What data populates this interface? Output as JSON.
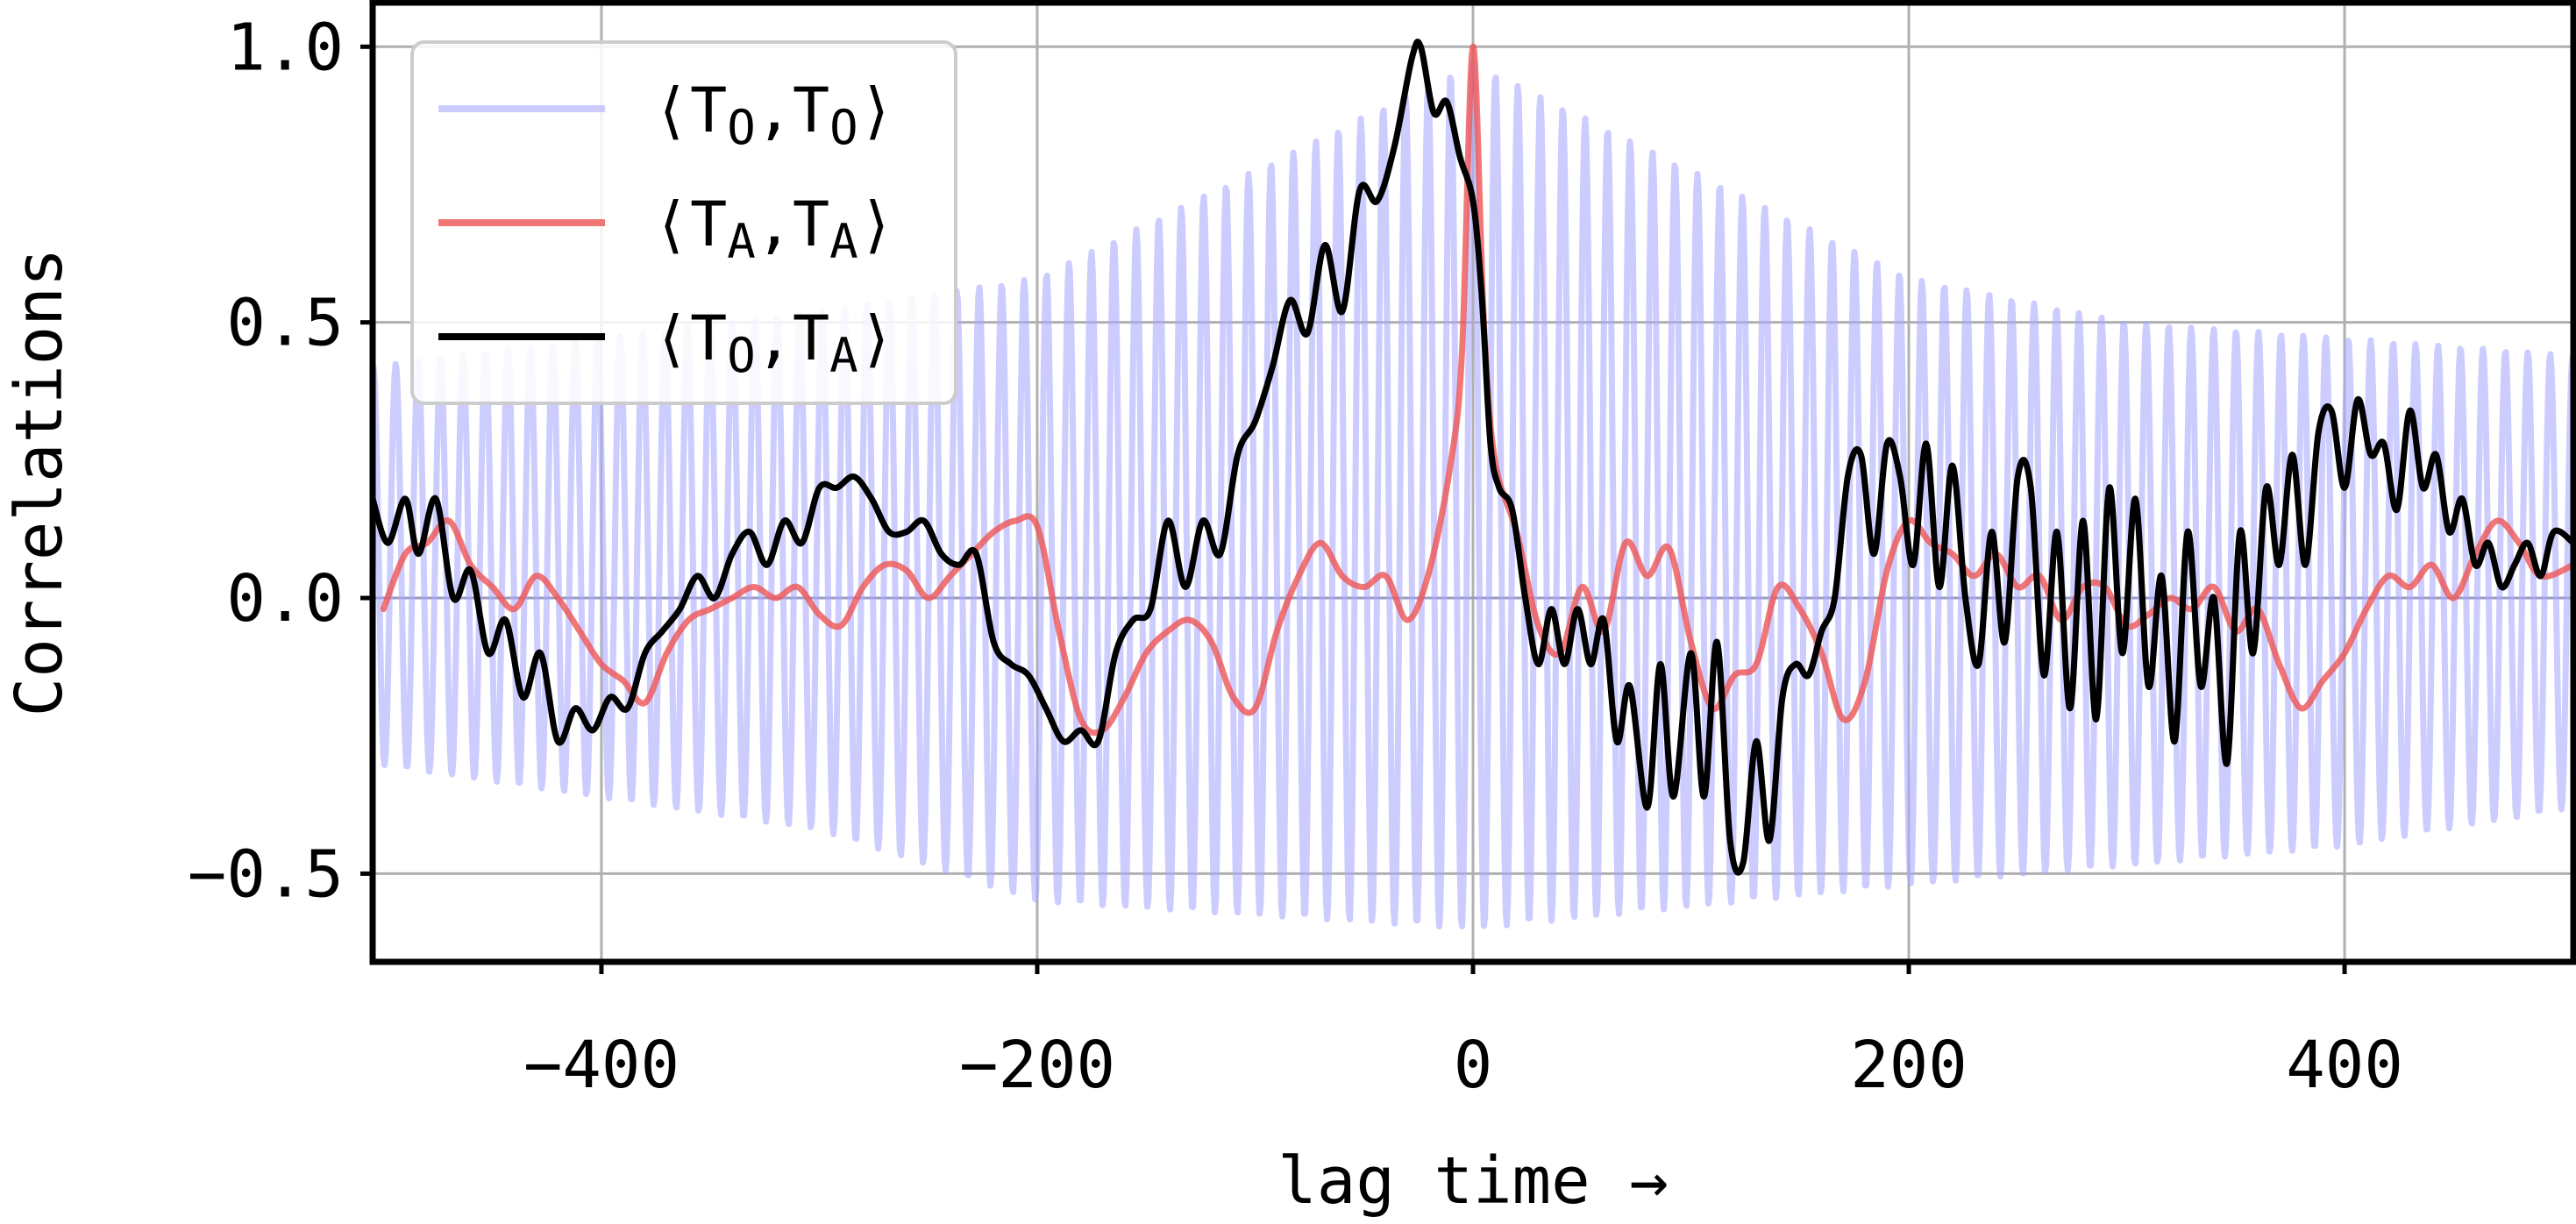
{
  "chart_data": {
    "type": "line",
    "title": "",
    "xlabel": "lag time →",
    "ylabel": "Correlations",
    "xlim": [
      -505,
      505
    ],
    "ylim": [
      -0.66,
      1.08
    ],
    "x_ticks": [
      -400,
      -200,
      0,
      200,
      400
    ],
    "x_tick_labels": [
      "−400",
      "−200",
      "0",
      "200",
      "400"
    ],
    "y_ticks": [
      -0.5,
      0.0,
      0.5,
      1.0
    ],
    "y_tick_labels": [
      "−0.5",
      "0.0",
      "0.5",
      "1.0"
    ],
    "grid": true,
    "zero_line": true,
    "legend_position": "upper-left",
    "series": [
      {
        "key": "TO",
        "legend": {
          "open": "⟨T",
          "sub1": "O",
          "mid": ",T",
          "sub2": "O",
          "close": "⟩"
        },
        "color": "#aaaaff",
        "opacity": 0.6,
        "kind": "oscillation",
        "period": 10.3,
        "envelope": {
          "upper": [
            [
              -505,
              0.42
            ],
            [
              -300,
              0.52
            ],
            [
              -200,
              0.58
            ],
            [
              0,
              0.97
            ],
            [
              200,
              0.58
            ],
            [
              300,
              0.5
            ],
            [
              505,
              0.44
            ]
          ],
          "lower": [
            [
              -505,
              -0.3
            ],
            [
              -300,
              -0.42
            ],
            [
              -200,
              -0.55
            ],
            [
              0,
              -0.6
            ],
            [
              200,
              -0.52
            ],
            [
              400,
              -0.45
            ],
            [
              505,
              -0.38
            ]
          ]
        }
      },
      {
        "key": "TA",
        "legend": {
          "open": "⟨T",
          "sub1": "A",
          "mid": ",T",
          "sub2": "A",
          "close": "⟩"
        },
        "color": "#ee5555",
        "opacity": 0.8,
        "kind": "line",
        "points": [
          [
            -500,
            -0.02
          ],
          [
            -490,
            0.08
          ],
          [
            -480,
            0.1
          ],
          [
            -470,
            0.14
          ],
          [
            -460,
            0.06
          ],
          [
            -450,
            0.02
          ],
          [
            -440,
            -0.02
          ],
          [
            -430,
            0.04
          ],
          [
            -420,
            0.0
          ],
          [
            -410,
            -0.06
          ],
          [
            -400,
            -0.12
          ],
          [
            -390,
            -0.15
          ],
          [
            -380,
            -0.19
          ],
          [
            -370,
            -0.1
          ],
          [
            -360,
            -0.04
          ],
          [
            -350,
            -0.02
          ],
          [
            -340,
            0.0
          ],
          [
            -330,
            0.02
          ],
          [
            -320,
            0.0
          ],
          [
            -310,
            0.02
          ],
          [
            -300,
            -0.03
          ],
          [
            -290,
            -0.05
          ],
          [
            -280,
            0.02
          ],
          [
            -270,
            0.06
          ],
          [
            -260,
            0.05
          ],
          [
            -250,
            0.0
          ],
          [
            -240,
            0.04
          ],
          [
            -230,
            0.08
          ],
          [
            -220,
            0.12
          ],
          [
            -210,
            0.14
          ],
          [
            -200,
            0.13
          ],
          [
            -190,
            -0.06
          ],
          [
            -180,
            -0.22
          ],
          [
            -170,
            -0.24
          ],
          [
            -160,
            -0.18
          ],
          [
            -150,
            -0.1
          ],
          [
            -140,
            -0.06
          ],
          [
            -130,
            -0.04
          ],
          [
            -120,
            -0.08
          ],
          [
            -110,
            -0.18
          ],
          [
            -100,
            -0.2
          ],
          [
            -90,
            -0.06
          ],
          [
            -80,
            0.04
          ],
          [
            -70,
            0.1
          ],
          [
            -60,
            0.04
          ],
          [
            -50,
            0.02
          ],
          [
            -40,
            0.04
          ],
          [
            -30,
            -0.04
          ],
          [
            -20,
            0.05
          ],
          [
            -10,
            0.25
          ],
          [
            -5,
            0.45
          ],
          [
            0,
            1.0
          ],
          [
            5,
            0.5
          ],
          [
            10,
            0.25
          ],
          [
            20,
            0.12
          ],
          [
            30,
            -0.05
          ],
          [
            40,
            -0.1
          ],
          [
            50,
            0.02
          ],
          [
            60,
            -0.06
          ],
          [
            70,
            0.1
          ],
          [
            80,
            0.04
          ],
          [
            90,
            0.09
          ],
          [
            100,
            -0.08
          ],
          [
            110,
            -0.2
          ],
          [
            120,
            -0.14
          ],
          [
            130,
            -0.12
          ],
          [
            140,
            0.02
          ],
          [
            150,
            -0.02
          ],
          [
            160,
            -0.1
          ],
          [
            170,
            -0.22
          ],
          [
            180,
            -0.15
          ],
          [
            190,
            0.05
          ],
          [
            200,
            0.14
          ],
          [
            210,
            0.1
          ],
          [
            220,
            0.08
          ],
          [
            230,
            0.04
          ],
          [
            240,
            0.08
          ],
          [
            250,
            0.02
          ],
          [
            260,
            0.04
          ],
          [
            270,
            -0.04
          ],
          [
            280,
            0.02
          ],
          [
            290,
            0.02
          ],
          [
            300,
            -0.05
          ],
          [
            310,
            -0.03
          ],
          [
            320,
            0.0
          ],
          [
            330,
            -0.02
          ],
          [
            340,
            0.02
          ],
          [
            350,
            -0.06
          ],
          [
            360,
            -0.02
          ],
          [
            370,
            -0.12
          ],
          [
            380,
            -0.2
          ],
          [
            390,
            -0.15
          ],
          [
            400,
            -0.1
          ],
          [
            410,
            -0.02
          ],
          [
            420,
            0.04
          ],
          [
            430,
            0.02
          ],
          [
            440,
            0.06
          ],
          [
            450,
            0.0
          ],
          [
            460,
            0.08
          ],
          [
            470,
            0.14
          ],
          [
            480,
            0.1
          ],
          [
            490,
            0.04
          ],
          [
            505,
            0.06
          ]
        ]
      },
      {
        "key": "TOTA",
        "legend": {
          "open": "⟨T",
          "sub1": "O",
          "mid": ",T",
          "sub2": "A",
          "close": "⟩"
        },
        "color": "#000000",
        "opacity": 1,
        "kind": "line",
        "points": [
          [
            -505,
            0.18
          ],
          [
            -498,
            0.1
          ],
          [
            -490,
            0.18
          ],
          [
            -484,
            0.08
          ],
          [
            -476,
            0.18
          ],
          [
            -468,
            0.0
          ],
          [
            -460,
            0.05
          ],
          [
            -452,
            -0.1
          ],
          [
            -444,
            -0.04
          ],
          [
            -436,
            -0.18
          ],
          [
            -428,
            -0.1
          ],
          [
            -420,
            -0.26
          ],
          [
            -412,
            -0.2
          ],
          [
            -404,
            -0.24
          ],
          [
            -396,
            -0.18
          ],
          [
            -388,
            -0.2
          ],
          [
            -380,
            -0.1
          ],
          [
            -372,
            -0.06
          ],
          [
            -364,
            -0.02
          ],
          [
            -356,
            0.04
          ],
          [
            -348,
            0.0
          ],
          [
            -340,
            0.08
          ],
          [
            -332,
            0.12
          ],
          [
            -324,
            0.06
          ],
          [
            -316,
            0.14
          ],
          [
            -308,
            0.1
          ],
          [
            -300,
            0.2
          ],
          [
            -292,
            0.2
          ],
          [
            -284,
            0.22
          ],
          [
            -276,
            0.18
          ],
          [
            -268,
            0.12
          ],
          [
            -260,
            0.12
          ],
          [
            -252,
            0.14
          ],
          [
            -244,
            0.08
          ],
          [
            -236,
            0.06
          ],
          [
            -228,
            0.08
          ],
          [
            -220,
            -0.08
          ],
          [
            -212,
            -0.12
          ],
          [
            -204,
            -0.14
          ],
          [
            -196,
            -0.2
          ],
          [
            -188,
            -0.26
          ],
          [
            -180,
            -0.24
          ],
          [
            -172,
            -0.26
          ],
          [
            -164,
            -0.1
          ],
          [
            -156,
            -0.04
          ],
          [
            -148,
            -0.02
          ],
          [
            -140,
            0.14
          ],
          [
            -132,
            0.02
          ],
          [
            -124,
            0.14
          ],
          [
            -116,
            0.08
          ],
          [
            -108,
            0.26
          ],
          [
            -100,
            0.32
          ],
          [
            -92,
            0.42
          ],
          [
            -84,
            0.54
          ],
          [
            -76,
            0.48
          ],
          [
            -68,
            0.64
          ],
          [
            -60,
            0.52
          ],
          [
            -52,
            0.74
          ],
          [
            -44,
            0.72
          ],
          [
            -36,
            0.82
          ],
          [
            -28,
            0.98
          ],
          [
            -24,
            1.0
          ],
          [
            -18,
            0.88
          ],
          [
            -12,
            0.9
          ],
          [
            -6,
            0.8
          ],
          [
            0,
            0.72
          ],
          [
            4,
            0.55
          ],
          [
            8,
            0.28
          ],
          [
            12,
            0.2
          ],
          [
            18,
            0.16
          ],
          [
            24,
            0.0
          ],
          [
            30,
            -0.12
          ],
          [
            36,
            -0.02
          ],
          [
            42,
            -0.12
          ],
          [
            48,
            -0.02
          ],
          [
            54,
            -0.12
          ],
          [
            60,
            -0.04
          ],
          [
            66,
            -0.26
          ],
          [
            72,
            -0.16
          ],
          [
            80,
            -0.38
          ],
          [
            86,
            -0.12
          ],
          [
            92,
            -0.36
          ],
          [
            100,
            -0.1
          ],
          [
            106,
            -0.36
          ],
          [
            112,
            -0.08
          ],
          [
            118,
            -0.44
          ],
          [
            124,
            -0.48
          ],
          [
            130,
            -0.26
          ],
          [
            136,
            -0.44
          ],
          [
            142,
            -0.18
          ],
          [
            148,
            -0.12
          ],
          [
            154,
            -0.14
          ],
          [
            160,
            -0.06
          ],
          [
            166,
            0.0
          ],
          [
            172,
            0.22
          ],
          [
            178,
            0.26
          ],
          [
            184,
            0.08
          ],
          [
            190,
            0.28
          ],
          [
            196,
            0.22
          ],
          [
            202,
            0.06
          ],
          [
            208,
            0.28
          ],
          [
            214,
            0.02
          ],
          [
            220,
            0.24
          ],
          [
            226,
            0.0
          ],
          [
            232,
            -0.12
          ],
          [
            238,
            0.12
          ],
          [
            244,
            -0.08
          ],
          [
            250,
            0.22
          ],
          [
            256,
            0.2
          ],
          [
            262,
            -0.14
          ],
          [
            268,
            0.12
          ],
          [
            274,
            -0.2
          ],
          [
            280,
            0.14
          ],
          [
            286,
            -0.22
          ],
          [
            292,
            0.2
          ],
          [
            298,
            -0.1
          ],
          [
            304,
            0.18
          ],
          [
            310,
            -0.16
          ],
          [
            316,
            0.04
          ],
          [
            322,
            -0.26
          ],
          [
            328,
            0.12
          ],
          [
            334,
            -0.16
          ],
          [
            340,
            0.0
          ],
          [
            346,
            -0.3
          ],
          [
            352,
            0.12
          ],
          [
            358,
            -0.1
          ],
          [
            364,
            0.2
          ],
          [
            370,
            0.06
          ],
          [
            376,
            0.26
          ],
          [
            382,
            0.06
          ],
          [
            388,
            0.3
          ],
          [
            394,
            0.34
          ],
          [
            400,
            0.2
          ],
          [
            406,
            0.36
          ],
          [
            412,
            0.26
          ],
          [
            418,
            0.28
          ],
          [
            424,
            0.16
          ],
          [
            430,
            0.34
          ],
          [
            436,
            0.2
          ],
          [
            442,
            0.26
          ],
          [
            448,
            0.12
          ],
          [
            454,
            0.18
          ],
          [
            460,
            0.06
          ],
          [
            466,
            0.1
          ],
          [
            472,
            0.02
          ],
          [
            478,
            0.06
          ],
          [
            484,
            0.1
          ],
          [
            490,
            0.04
          ],
          [
            496,
            0.12
          ],
          [
            505,
            0.1
          ]
        ]
      }
    ]
  }
}
